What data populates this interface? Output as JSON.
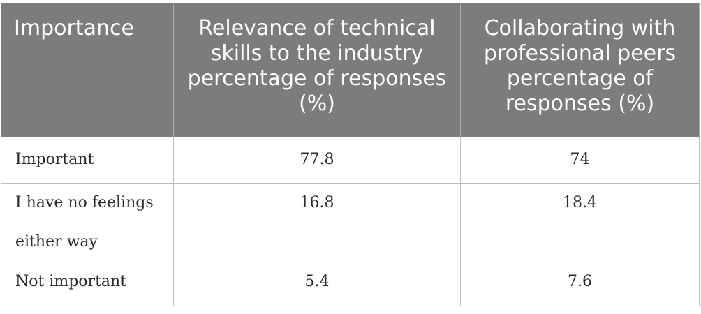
{
  "table": {
    "headers": [
      "Importance",
      "Relevance of technical skills to the industry percentage of responses (%)",
      "Collaborating with professional peers percentage of responses (%)"
    ],
    "rows": [
      {
        "importance": "Important",
        "technical_skills": "77.8",
        "collaborating": "74"
      },
      {
        "importance": "I have no feelings either way",
        "technical_skills": "16.8",
        "collaborating": "18.4"
      },
      {
        "importance": "Not important",
        "technical_skills": "5.4",
        "collaborating": "7.6"
      }
    ]
  },
  "colors": {
    "header_background": "#7c7c7a",
    "header_text": "#ffffff",
    "body_text": "#2a2a2a",
    "border": "#bdbdbd"
  }
}
